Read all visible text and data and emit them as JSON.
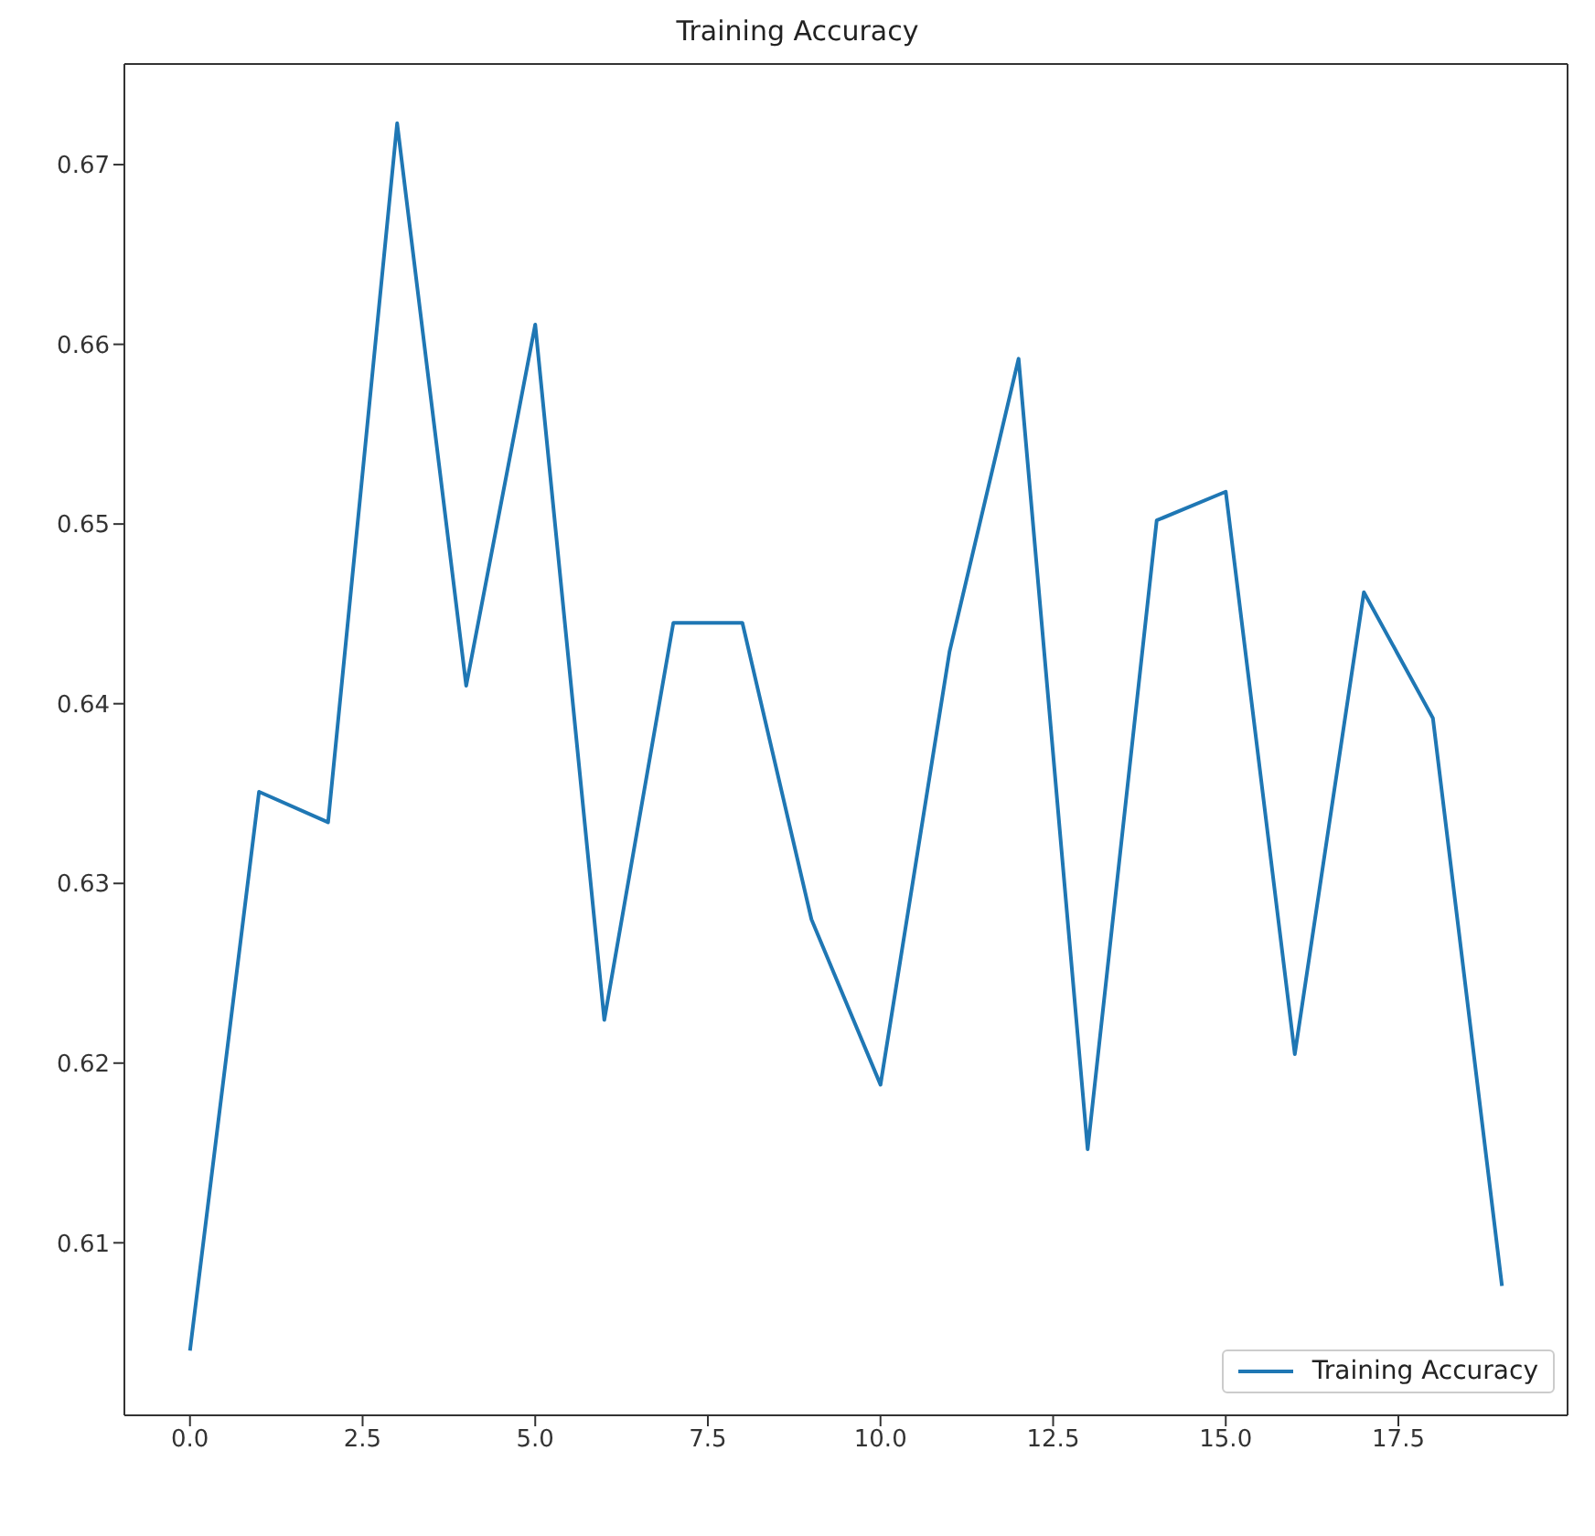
{
  "chart_data": {
    "type": "line",
    "title": "Training Accuracy",
    "x": [
      0,
      1,
      2,
      3,
      4,
      5,
      6,
      7,
      8,
      9,
      10,
      11,
      12,
      13,
      14,
      15,
      16,
      17,
      18,
      19
    ],
    "series": [
      {
        "name": "Training Accuracy",
        "color": "#1f77b4",
        "values": [
          0.604,
          0.6351,
          0.6334,
          0.6723,
          0.641,
          0.6611,
          0.6224,
          0.6445,
          0.6445,
          0.628,
          0.6188,
          0.6429,
          0.6592,
          0.6152,
          0.6502,
          0.6518,
          0.6205,
          0.6462,
          0.6392,
          0.6076
        ]
      }
    ],
    "xlim": [
      -0.95,
      19.95
    ],
    "xticks": [
      {
        "value": 0,
        "label": "0.0"
      },
      {
        "value": 2.5,
        "label": "2.5"
      },
      {
        "value": 5,
        "label": "5.0"
      },
      {
        "value": 7.5,
        "label": "7.5"
      },
      {
        "value": 10,
        "label": "10.0"
      },
      {
        "value": 12.5,
        "label": "12.5"
      },
      {
        "value": 15,
        "label": "15.0"
      },
      {
        "value": 17.5,
        "label": "17.5"
      }
    ],
    "ylim": [
      0.6004,
      0.6756
    ],
    "yticks": [
      0.61,
      0.62,
      0.63,
      0.64,
      0.65,
      0.66,
      0.67
    ],
    "legend": "bottom right",
    "marker": "none",
    "line_style": "solid",
    "grid": false
  }
}
